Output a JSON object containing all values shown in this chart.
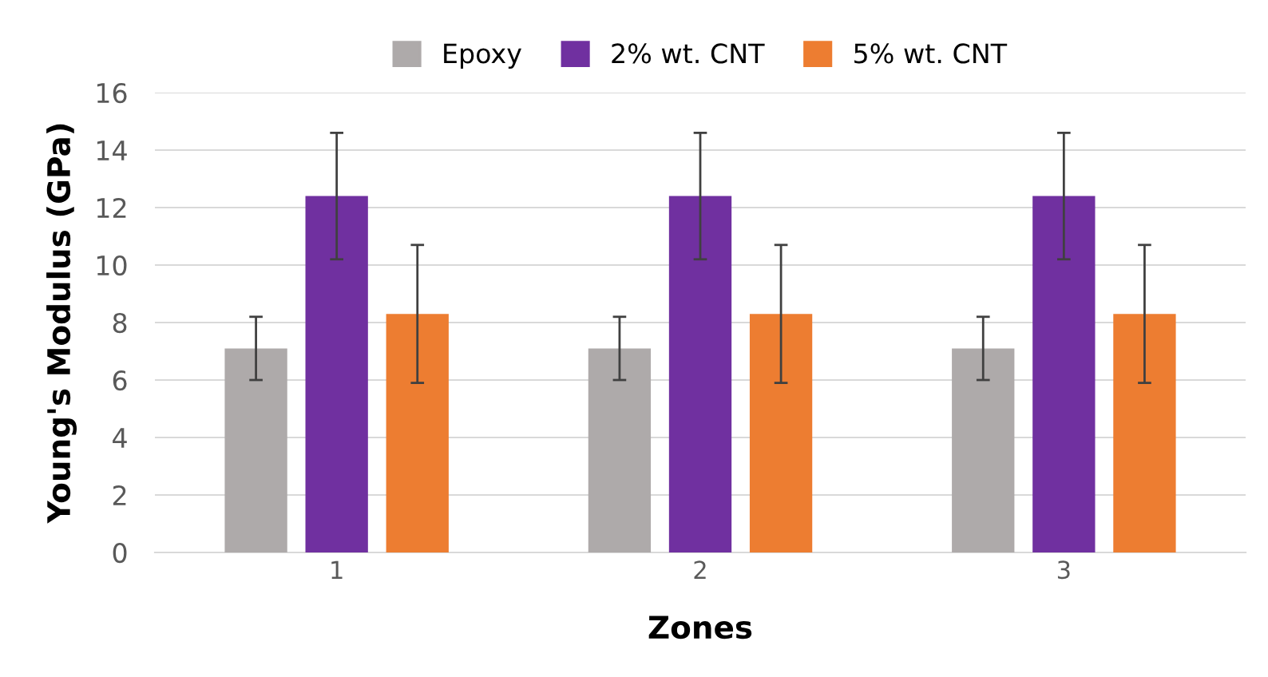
{
  "chart_data": {
    "type": "bar",
    "xlabel": "Zones",
    "ylabel": "Young's Modulus (GPa)",
    "categories": [
      "1",
      "2",
      "3"
    ],
    "series": [
      {
        "name": "Epoxy",
        "color": "#aeaaaa",
        "values": [
          7.1,
          7.1,
          7.1
        ],
        "errors": [
          1.1,
          1.1,
          1.1
        ]
      },
      {
        "name": "2% wt. CNT",
        "color": "#7030a0",
        "values": [
          12.4,
          12.4,
          12.4
        ],
        "errors": [
          2.2,
          2.2,
          2.2
        ]
      },
      {
        "name": "5% wt. CNT",
        "color": "#ed7d31",
        "values": [
          8.3,
          8.3,
          8.3
        ],
        "errors": [
          2.4,
          2.4,
          2.4
        ]
      }
    ],
    "ylim": [
      0,
      16
    ],
    "yticks": [
      0,
      2,
      4,
      6,
      8,
      10,
      12,
      14,
      16
    ],
    "grid": "y",
    "legend": "top"
  }
}
